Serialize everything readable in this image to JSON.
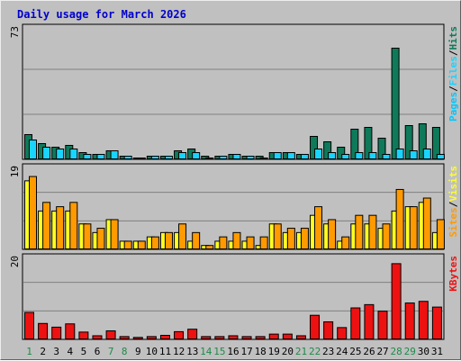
{
  "title": "Daily usage for March 2026",
  "colors": {
    "background": "#c0c0c0",
    "plot_background": "#c0c0c0",
    "grid": "#808080",
    "title": "#0000cc",
    "hits": "#0e7a5a",
    "files": "#19d4ff",
    "pages": "#00c8ff",
    "visits": "#ffff22",
    "sites": "#ff9a00",
    "kbytes": "#ee1111",
    "day_weekday": "#000000",
    "day_weekend": "#1f8a4a"
  },
  "chart_data": [
    {
      "type": "bar",
      "panel": "top",
      "ymax_label": "73",
      "categories": [
        "1",
        "2",
        "3",
        "4",
        "5",
        "6",
        "7",
        "8",
        "9",
        "10",
        "11",
        "12",
        "13",
        "14",
        "15",
        "16",
        "17",
        "18",
        "19",
        "20",
        "21",
        "22",
        "23",
        "24",
        "25",
        "26",
        "27",
        "28",
        "29",
        "30",
        "31"
      ],
      "weekend_days": [
        "1",
        "7",
        "8",
        "14",
        "15",
        "21",
        "22",
        "28",
        "29"
      ],
      "legend": [
        "Pages",
        "/",
        "Files",
        "/",
        "Hits"
      ],
      "series": [
        {
          "name": "Hits",
          "values": [
            14,
            9,
            7,
            8,
            4,
            3,
            5,
            2,
            1,
            2,
            2,
            5,
            6,
            2,
            2,
            3,
            2,
            2,
            4,
            4,
            3,
            13,
            10,
            7,
            17,
            18,
            12,
            62,
            19,
            20,
            18
          ]
        },
        {
          "name": "Files",
          "values": [
            11,
            7,
            6,
            6,
            3,
            3,
            5,
            2,
            1,
            2,
            2,
            4,
            4,
            1,
            2,
            3,
            2,
            1,
            4,
            4,
            3,
            6,
            4,
            3,
            4,
            4,
            3,
            6,
            5,
            6,
            3
          ]
        },
        {
          "name": "Pages",
          "values": [
            11,
            7,
            6,
            6,
            3,
            3,
            5,
            2,
            1,
            2,
            2,
            4,
            4,
            1,
            2,
            3,
            2,
            1,
            4,
            4,
            3,
            6,
            4,
            3,
            4,
            4,
            3,
            6,
            5,
            6,
            3
          ]
        }
      ],
      "ylim": [
        0,
        73
      ]
    },
    {
      "type": "bar",
      "panel": "middle",
      "ymax_label": "19",
      "legend": [
        "Sites",
        "/",
        "Visits"
      ],
      "series": [
        {
          "name": "Visits",
          "values": [
            16,
            9,
            9,
            9,
            6,
            4,
            7,
            2,
            2,
            3,
            4,
            4,
            2,
            1,
            2,
            2,
            2,
            1,
            6,
            4,
            4,
            8,
            6,
            2,
            6,
            6,
            5,
            9,
            10,
            11,
            4
          ]
        },
        {
          "name": "Sites",
          "values": [
            17,
            11,
            10,
            11,
            6,
            5,
            7,
            2,
            2,
            3,
            4,
            6,
            4,
            1,
            3,
            4,
            3,
            3,
            6,
            5,
            5,
            10,
            7,
            3,
            8,
            8,
            6,
            14,
            10,
            12,
            7
          ]
        }
      ],
      "ylim": [
        0,
        19
      ]
    },
    {
      "type": "bar",
      "panel": "bottom",
      "ymax_label": "20",
      "legend": [
        "KBytes"
      ],
      "series": [
        {
          "name": "KBytes",
          "values": [
            6.7,
            4.0,
            3.1,
            3.9,
            1.9,
            1.0,
            2.2,
            0.8,
            0.6,
            0.8,
            1.1,
            2.0,
            2.6,
            0.8,
            0.8,
            1.0,
            0.8,
            0.8,
            1.4,
            1.4,
            1.0,
            6.0,
            4.4,
            3.0,
            7.8,
            8.6,
            7.0,
            18.6,
            9.0,
            9.4,
            8.0
          ]
        }
      ],
      "ylim": [
        0,
        20
      ]
    }
  ]
}
